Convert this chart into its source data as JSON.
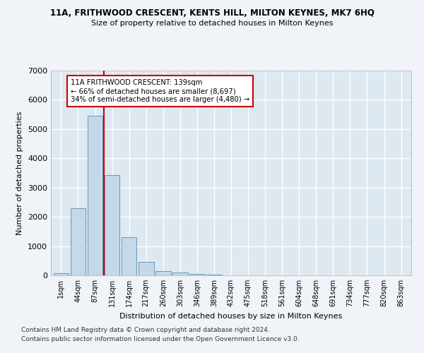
{
  "title1": "11A, FRITHWOOD CRESCENT, KENTS HILL, MILTON KEYNES, MK7 6HQ",
  "title2": "Size of property relative to detached houses in Milton Keynes",
  "xlabel": "Distribution of detached houses by size in Milton Keynes",
  "ylabel": "Number of detached properties",
  "footnote1": "Contains HM Land Registry data © Crown copyright and database right 2024.",
  "footnote2": "Contains public sector information licensed under the Open Government Licence v3.0.",
  "bar_labels": [
    "1sqm",
    "44sqm",
    "87sqm",
    "131sqm",
    "174sqm",
    "217sqm",
    "260sqm",
    "303sqm",
    "346sqm",
    "389sqm",
    "432sqm",
    "475sqm",
    "518sqm",
    "561sqm",
    "604sqm",
    "648sqm",
    "691sqm",
    "734sqm",
    "777sqm",
    "820sqm",
    "863sqm"
  ],
  "bar_values": [
    80,
    2300,
    5450,
    3430,
    1310,
    470,
    155,
    90,
    60,
    35,
    0,
    0,
    0,
    0,
    0,
    0,
    0,
    0,
    0,
    0,
    0
  ],
  "bar_color": "#c5d8ea",
  "bar_edge_color": "#6699bb",
  "vline_color": "#cc0000",
  "annotation_line1": "11A FRITHWOOD CRESCENT: 139sqm",
  "annotation_line2": "← 66% of detached houses are smaller (8,697)",
  "annotation_line3": "34% of semi-detached houses are larger (4,480) →",
  "annotation_box_color": "#cc0000",
  "ylim": [
    0,
    7000
  ],
  "fig_bg_color": "#f0f4f8",
  "ax_bg_color": "#dde8f0",
  "grid_color": "#ffffff"
}
